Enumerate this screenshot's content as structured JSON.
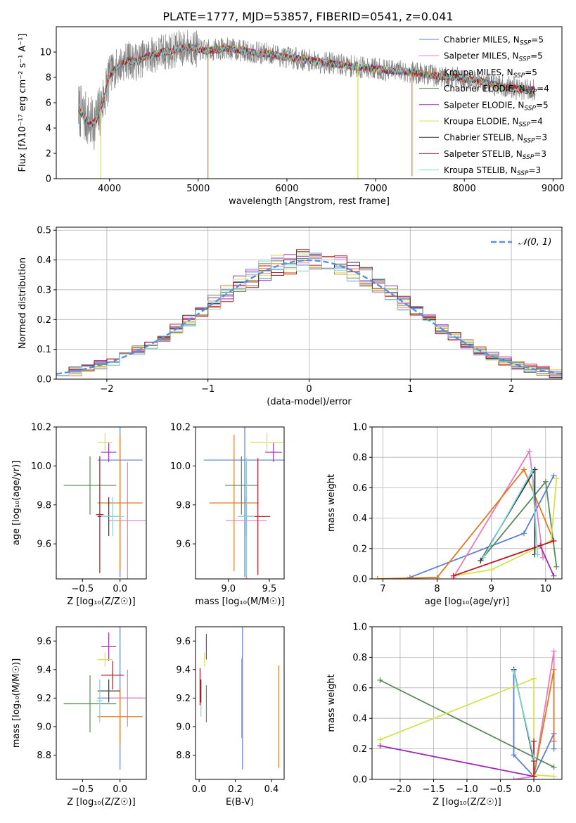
{
  "figure_title": "PLATE=1777, MJD=53857, FIBERID=0541, z=0.041",
  "models": [
    {
      "name": "Chabrier MILES",
      "n": "5",
      "color": "#5b7fd6"
    },
    {
      "name": "Salpeter MILES",
      "n": "5",
      "color": "#e87cbf"
    },
    {
      "name": "Kroupa MILES",
      "n": "5",
      "color": "#e07b20"
    },
    {
      "name": "Chabrier ELODIE",
      "n": "4",
      "color": "#5a8a5a"
    },
    {
      "name": "Salpeter ELODIE",
      "n": "5",
      "color": "#9b2db5"
    },
    {
      "name": "Kroupa ELODIE",
      "n": "4",
      "color": "#d4e34a"
    },
    {
      "name": "Chabrier STELIB",
      "n": "3",
      "color": "#333333"
    },
    {
      "name": "Salpeter STELIB",
      "n": "3",
      "color": "#c0141e"
    },
    {
      "name": "Kroupa STELIB",
      "n": "3",
      "color": "#7fd6dc"
    }
  ],
  "chart_data": [
    {
      "id": "spectrum",
      "type": "line",
      "xlabel": "wavelength [Angstrom, rest frame]",
      "ylabel": "Flux [fλ10⁻¹⁷ erg cm⁻² s⁻¹ A⁻¹]",
      "xlim": [
        3400,
        9100
      ],
      "ylim": [
        0,
        12
      ],
      "xticks": [
        4000,
        5000,
        6000,
        7000,
        8000,
        9000
      ],
      "yticks": [
        0,
        2,
        4,
        6,
        8,
        10
      ],
      "data_color": "#808080",
      "continuum": {
        "x": [
          3650,
          3700,
          3750,
          3800,
          3850,
          3900,
          3950,
          4000,
          4100,
          4200,
          4300,
          4400,
          4500,
          4600,
          4700,
          4800,
          4900,
          5000,
          5100,
          5200,
          5300,
          5400,
          5500,
          5600,
          5700,
          5800,
          5900,
          6000,
          6100,
          6200,
          6300,
          6400,
          6500,
          6600,
          6700,
          6800,
          6900,
          7000,
          7100,
          7200,
          7300,
          7400,
          7500,
          7600,
          7700,
          7800,
          7900,
          8000,
          8100,
          8200,
          8300,
          8400,
          8500,
          8600,
          8700,
          8800
        ],
        "y": [
          5.5,
          5.0,
          4.6,
          4.3,
          4.6,
          5.5,
          6.8,
          8.2,
          8.9,
          9.4,
          9.2,
          9.6,
          9.8,
          10.0,
          10.1,
          10.3,
          10.4,
          10.2,
          10.1,
          10.2,
          10.3,
          10.2,
          10.1,
          10.0,
          9.9,
          9.9,
          9.7,
          9.6,
          9.5,
          9.4,
          9.3,
          9.2,
          9.1,
          9.0,
          8.9,
          8.8,
          8.8,
          8.7,
          8.6,
          8.5,
          8.5,
          8.4,
          8.3,
          8.2,
          8.1,
          8.0,
          8.0,
          7.9,
          7.8,
          7.7,
          7.5,
          7.3,
          7.2,
          7.1,
          7.0,
          7.0
        ]
      },
      "dropouts": [
        {
          "x": 3900,
          "y": 0,
          "color": "#d4e34a"
        },
        {
          "x": 5110,
          "y": 0,
          "color": "#e07b20"
        },
        {
          "x": 6800,
          "y": 0,
          "color": "#d4e34a"
        },
        {
          "x": 7410,
          "y": 0.2,
          "color": "#e07b20"
        }
      ]
    },
    {
      "id": "residuals",
      "type": "histogram",
      "xlabel": "(data-model)/error",
      "ylabel": "Normed distribution",
      "xlim": [
        -2.5,
        2.5
      ],
      "ylim": [
        0,
        0.51
      ],
      "xticks": [
        -2,
        -1,
        0,
        1,
        2
      ],
      "yticks": [
        0.0,
        0.1,
        0.2,
        0.3,
        0.4,
        0.5
      ],
      "grid": true,
      "legend": "𝒩(0, 1)",
      "bins": 40,
      "seeds": [
        3,
        11,
        19,
        27,
        35,
        43,
        51,
        59,
        67
      ]
    },
    {
      "id": "age_vs_Z",
      "type": "errorbar",
      "xlabel": "Z [log₁₀(Z/Z☉)]",
      "ylabel": "age  [log₁₀(age/yr)]",
      "xlim": [
        -0.85,
        0.35
      ],
      "ylim": [
        9.42,
        10.2
      ],
      "xticks": [
        -0.5,
        0.0
      ],
      "yticks": [
        9.6,
        9.8,
        10.0,
        10.2
      ],
      "points": [
        {
          "x": 0.0,
          "xe": 0.3,
          "y": 10.03,
          "ye": 0.6
        },
        {
          "x": 0.1,
          "xe": 0.25,
          "y": 9.72,
          "ye": 0.3
        },
        {
          "x": 0.0,
          "xe": 0.3,
          "y": 9.81,
          "ye": 0.35
        },
        {
          "x": -0.4,
          "xe": 0.35,
          "y": 9.9,
          "ye": 0.15
        },
        {
          "x": -0.15,
          "xe": 0.1,
          "y": 10.07,
          "ye": 0.05
        },
        {
          "x": -0.2,
          "xe": 0.1,
          "y": 10.12,
          "ye": 0.05
        },
        {
          "x": -0.15,
          "xe": 0.15,
          "y": 9.74,
          "ye": 0.1
        },
        {
          "x": -0.27,
          "xe": 0.05,
          "y": 9.75,
          "ye": 0.3
        },
        {
          "x": -0.1,
          "xe": 0.15,
          "y": 9.74,
          "ye": 0.1
        }
      ]
    },
    {
      "id": "age_vs_mass",
      "type": "errorbar",
      "xlabel": "mass [log₁₀(M/M☉)]",
      "ylabel": "",
      "xlim": [
        8.6,
        9.68
      ],
      "ylim": [
        9.42,
        10.2
      ],
      "xticks": [
        9.0,
        9.5
      ],
      "yticks": [
        9.6,
        9.8,
        10.0,
        10.2
      ],
      "points": [
        {
          "x": 9.2,
          "xe": 0.5,
          "y": 10.03,
          "ye": 0.6
        },
        {
          "x": 9.22,
          "xe": 0.25,
          "y": 9.72,
          "ye": 0.3
        },
        {
          "x": 9.07,
          "xe": 0.3,
          "y": 9.81,
          "ye": 0.35
        },
        {
          "x": 9.16,
          "xe": 0.2,
          "y": 9.9,
          "ye": 0.15
        },
        {
          "x": 9.55,
          "xe": 0.1,
          "y": 10.07,
          "ye": 0.05
        },
        {
          "x": 9.47,
          "xe": 0.2,
          "y": 10.12,
          "ye": 0.05
        },
        {
          "x": 9.22,
          "xe": 0.1,
          "y": 9.74,
          "ye": 0.1
        },
        {
          "x": 9.36,
          "xe": 0.15,
          "y": 9.74,
          "ye": 0.3
        },
        {
          "x": 9.22,
          "xe": 0.1,
          "y": 9.74,
          "ye": 0.3
        }
      ]
    },
    {
      "id": "weight_vs_age",
      "type": "line",
      "xlabel": "age  [log₁₀(age/yr)]",
      "ylabel": "mass weight",
      "xlim": [
        6.8,
        10.3
      ],
      "ylim": [
        0,
        1
      ],
      "xticks": [
        7,
        8,
        9,
        10
      ],
      "yticks": [
        0.0,
        0.2,
        0.4,
        0.6,
        0.8,
        1.0
      ],
      "grid": true,
      "series": [
        {
          "x": [
            7.5,
            9.6,
            10.15
          ],
          "y": [
            0.01,
            0.3,
            0.68
          ]
        },
        {
          "x": [
            8.3,
            9.7,
            9.95
          ],
          "y": [
            0.01,
            0.84,
            0.14
          ]
        },
        {
          "x": [
            6.9,
            8.0,
            9.6,
            10.15
          ],
          "y": [
            0.0,
            0.01,
            0.72,
            0.25
          ]
        },
        {
          "x": [
            8.8,
            10.0,
            10.2
          ],
          "y": [
            0.12,
            0.64,
            0.08
          ]
        },
        {
          "x": [
            9.9,
            10.15
          ],
          "y": [
            0.22,
            0.02
          ]
        },
        {
          "x": [
            8.3,
            9.0,
            10.1,
            10.2
          ],
          "y": [
            0.02,
            0.06,
            0.25,
            0.66
          ]
        },
        {
          "x": [
            8.8,
            9.8,
            9.8
          ],
          "y": [
            0.12,
            0.72,
            0.16
          ]
        },
        {
          "x": [
            8.3,
            10.15
          ],
          "y": [
            0.02,
            0.25
          ]
        },
        {
          "x": [
            8.85,
            9.75,
            9.85
          ],
          "y": [
            0.14,
            0.71,
            0.16
          ]
        }
      ]
    },
    {
      "id": "mass_vs_Z",
      "type": "errorbar",
      "xlabel": "Z [log₁₀(Z/Z☉)]",
      "ylabel": "mass [log₁₀(M/M☉)]",
      "xlim": [
        -0.85,
        0.35
      ],
      "ylim": [
        8.63,
        9.7
      ],
      "xticks": [
        -0.5,
        0.0
      ],
      "yticks": [
        8.8,
        9.0,
        9.2,
        9.4,
        9.6
      ],
      "points": [
        {
          "x": 0.0,
          "xe": 0.3,
          "y": 9.2,
          "ye": 0.5
        },
        {
          "x": 0.1,
          "xe": 0.25,
          "y": 9.2,
          "ye": 0.2
        },
        {
          "x": 0.0,
          "xe": 0.3,
          "y": 9.07,
          "ye": 0.2
        },
        {
          "x": -0.4,
          "xe": 0.35,
          "y": 9.16,
          "ye": 0.2
        },
        {
          "x": -0.15,
          "xe": 0.1,
          "y": 9.56,
          "ye": 0.1
        },
        {
          "x": -0.2,
          "xe": 0.1,
          "y": 9.47,
          "ye": 0.05
        },
        {
          "x": -0.15,
          "xe": 0.15,
          "y": 9.25,
          "ye": 0.08
        },
        {
          "x": -0.1,
          "xe": 0.15,
          "y": 9.36,
          "ye": 0.1
        },
        {
          "x": -0.27,
          "xe": 0.05,
          "y": 9.18,
          "ye": 0.15
        }
      ]
    },
    {
      "id": "mass_vs_EBV",
      "type": "errorbar",
      "xlabel": "E(B-V)",
      "ylabel": "",
      "xlim": [
        -0.02,
        0.47
      ],
      "ylim": [
        8.63,
        9.7
      ],
      "xticks": [
        0.0,
        0.2,
        0.4
      ],
      "yticks": [
        8.8,
        9.0,
        9.2,
        9.4,
        9.6
      ],
      "points": [
        {
          "x": 0.24,
          "xe": 0,
          "y": 9.2,
          "ye": 0.5
        },
        {
          "x": 0.235,
          "xe": 0,
          "y": 9.2,
          "ye": 0.28
        },
        {
          "x": 0.44,
          "xe": 0,
          "y": 9.07,
          "ye": 0.36
        },
        {
          "x": 0.04,
          "xe": 0,
          "y": 9.16,
          "ye": 0.13
        },
        {
          "x": 0.04,
          "xe": 0,
          "y": 9.56,
          "ye": 0.09
        },
        {
          "x": 0.03,
          "xe": 0,
          "y": 9.47,
          "ye": 0.05
        },
        {
          "x": 0.01,
          "xe": 0,
          "y": 9.25,
          "ye": 0.08
        },
        {
          "x": 0.005,
          "xe": 0,
          "y": 9.28,
          "ye": 0.13
        },
        {
          "x": 0.01,
          "xe": 0,
          "y": 9.12,
          "ye": 0.05
        }
      ]
    },
    {
      "id": "weight_vs_Z",
      "type": "line",
      "xlabel": "Z [log₁₀(Z/Z☉)]",
      "ylabel": "mass weight",
      "xlim": [
        -2.42,
        0.42
      ],
      "ylim": [
        0,
        1
      ],
      "xticks": [
        -2.0,
        -1.5,
        -1.0,
        -0.5,
        0.0
      ],
      "yticks": [
        0.0,
        0.2,
        0.4,
        0.6,
        0.8,
        1.0
      ],
      "grid": true,
      "series": [
        {
          "x": [
            -0.3,
            -0.3,
            0.0,
            0.3,
            0.3
          ],
          "y": [
            0.72,
            0.16,
            0.02,
            0.3,
            0.2
          ]
        },
        {
          "x": [
            -0.3,
            0.0,
            0.3,
            0.3
          ],
          "y": [
            0.0,
            0.02,
            0.84,
            0.25
          ]
        },
        {
          "x": [
            0.0,
            0.3,
            0.3
          ],
          "y": [
            0.02,
            0.72,
            0.25
          ]
        },
        {
          "x": [
            -2.3,
            0.3
          ],
          "y": [
            0.65,
            0.08
          ]
        },
        {
          "x": [
            -2.3,
            0.0
          ],
          "y": [
            0.22,
            0.02
          ]
        },
        {
          "x": [
            -2.3,
            0.0,
            0.0,
            0.3
          ],
          "y": [
            0.26,
            0.66,
            0.03,
            0.02
          ]
        },
        {
          "x": [
            -0.3,
            0.0
          ],
          "y": [
            0.72,
            0.12
          ]
        },
        {
          "x": [
            0.0,
            0.0
          ],
          "y": [
            0.25,
            0.02
          ]
        },
        {
          "x": [
            -0.3,
            0.0
          ],
          "y": [
            0.71,
            0.14
          ]
        }
      ]
    }
  ]
}
